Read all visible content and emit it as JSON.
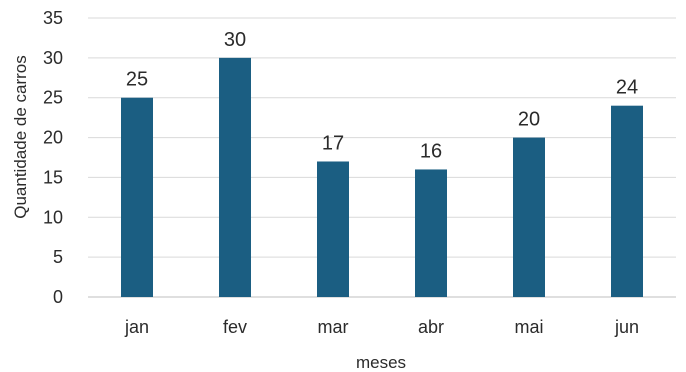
{
  "chart_data": {
    "type": "bar",
    "categories": [
      "jan",
      "fev",
      "mar",
      "abr",
      "mai",
      "jun"
    ],
    "values": [
      25,
      30,
      17,
      16,
      20,
      24
    ],
    "xlabel": "meses",
    "ylabel": "Quantidade de carros",
    "ylim": [
      0,
      35
    ],
    "yticks": [
      0,
      5,
      10,
      15,
      20,
      25,
      30,
      35
    ],
    "grid": true,
    "data_labels": true,
    "bar_color": "#1b5e82"
  }
}
